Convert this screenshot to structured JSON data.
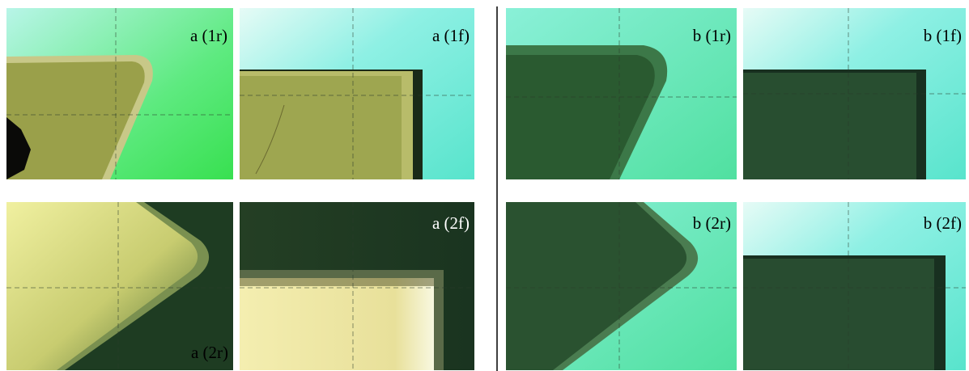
{
  "panels": [
    {
      "label": "a (1r)"
    },
    {
      "label": "a (1f)"
    },
    {
      "label": "b (1r)"
    },
    {
      "label": "b (1f)"
    },
    {
      "label": "a (2r)"
    },
    {
      "label": "a (2f)"
    },
    {
      "label": "b (2r)"
    },
    {
      "label": "b (2f)"
    }
  ]
}
